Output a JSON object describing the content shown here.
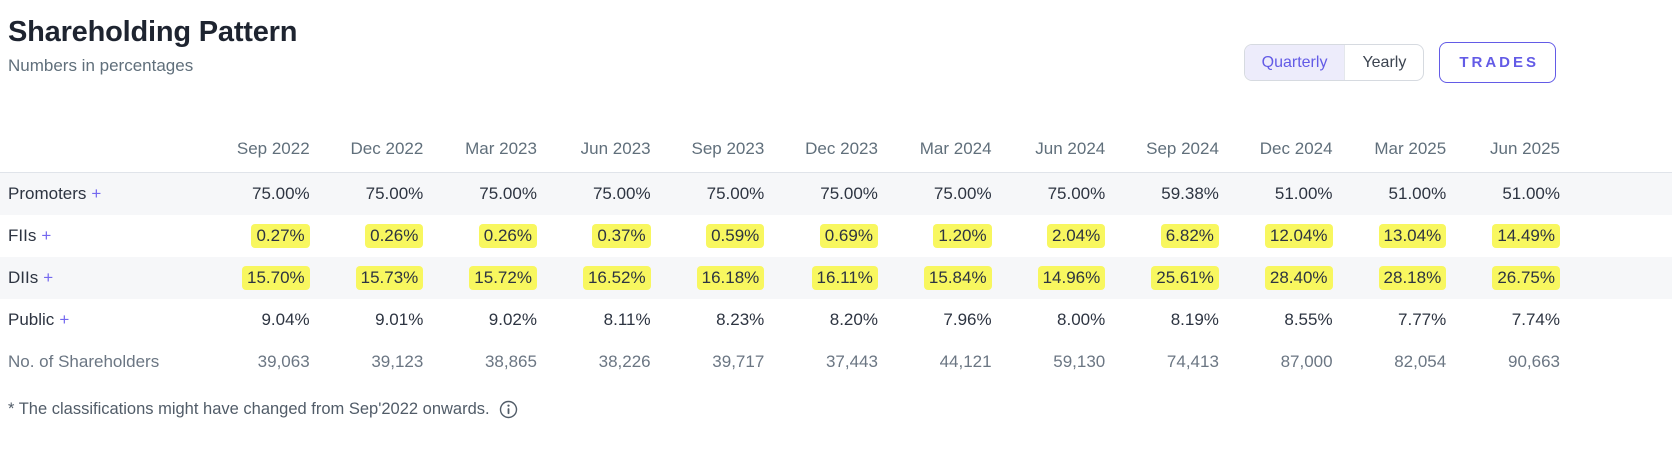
{
  "accent_color": "#635BE6",
  "highlight_color": "#F8F75F",
  "header": {
    "title": "Shareholding Pattern",
    "subtitle": "Numbers in percentages",
    "toggle": {
      "quarterly": "Quarterly",
      "yearly": "Yearly",
      "selected": "Quarterly"
    },
    "trades_label": "TRADES"
  },
  "table": {
    "columns": [
      "Sep 2022",
      "Dec 2022",
      "Mar 2023",
      "Jun 2023",
      "Sep 2023",
      "Dec 2023",
      "Mar 2024",
      "Jun 2024",
      "Sep 2024",
      "Dec 2024",
      "Mar 2025",
      "Jun 2025"
    ],
    "rows": [
      {
        "id": "promoters",
        "label": "Promoters",
        "expandable": true,
        "highlighted": false,
        "muted": false,
        "values": [
          "75.00%",
          "75.00%",
          "75.00%",
          "75.00%",
          "75.00%",
          "75.00%",
          "75.00%",
          "75.00%",
          "59.38%",
          "51.00%",
          "51.00%",
          "51.00%"
        ]
      },
      {
        "id": "fiis",
        "label": "FIIs",
        "expandable": true,
        "highlighted": true,
        "muted": false,
        "values": [
          "0.27%",
          "0.26%",
          "0.26%",
          "0.37%",
          "0.59%",
          "0.69%",
          "1.20%",
          "2.04%",
          "6.82%",
          "12.04%",
          "13.04%",
          "14.49%"
        ]
      },
      {
        "id": "diis",
        "label": "DIIs",
        "expandable": true,
        "highlighted": true,
        "muted": false,
        "values": [
          "15.70%",
          "15.73%",
          "15.72%",
          "16.52%",
          "16.18%",
          "16.11%",
          "15.84%",
          "14.96%",
          "25.61%",
          "28.40%",
          "28.18%",
          "26.75%"
        ]
      },
      {
        "id": "public",
        "label": "Public",
        "expandable": true,
        "highlighted": false,
        "muted": false,
        "values": [
          "9.04%",
          "9.01%",
          "9.02%",
          "8.11%",
          "8.23%",
          "8.20%",
          "7.96%",
          "8.00%",
          "8.19%",
          "8.55%",
          "7.77%",
          "7.74%"
        ]
      },
      {
        "id": "shareholders",
        "label": "No. of Shareholders",
        "expandable": false,
        "highlighted": false,
        "muted": true,
        "values": [
          "39,063",
          "39,123",
          "38,865",
          "38,226",
          "39,717",
          "37,443",
          "44,121",
          "59,130",
          "74,413",
          "87,000",
          "82,054",
          "90,663"
        ]
      }
    ]
  },
  "footnote": {
    "text": "* The classifications might have changed from Sep'2022 onwards."
  }
}
